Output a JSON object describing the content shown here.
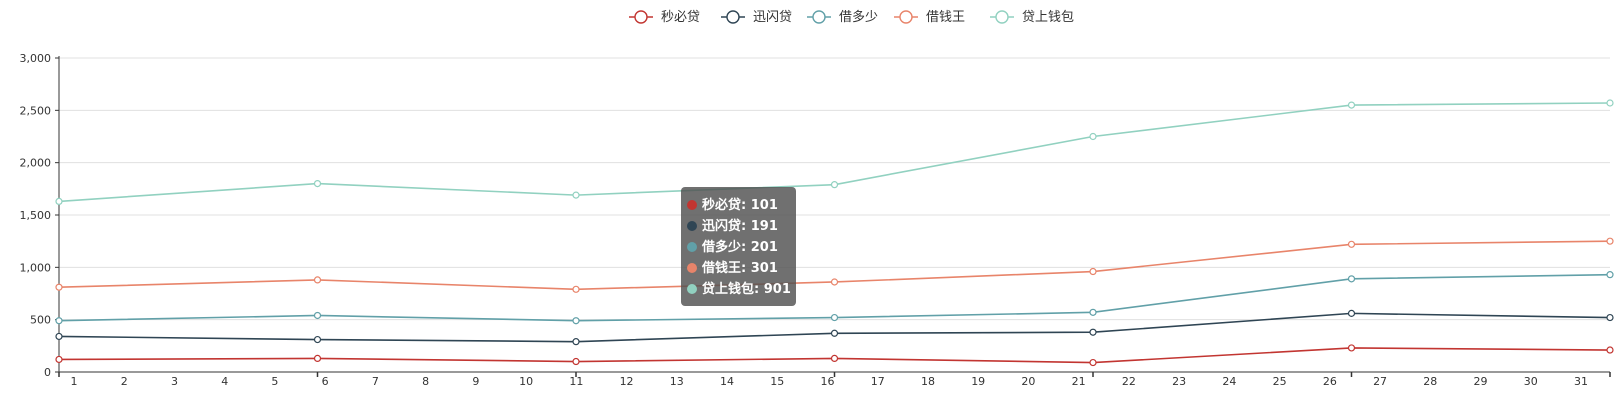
{
  "chart_data": {
    "type": "line",
    "legend_position": "top-center",
    "grid": true,
    "ylim": [
      0,
      3000
    ],
    "yticks": [
      "0",
      "500",
      "1,000",
      "1,500",
      "2,000",
      "2,500",
      "3,000"
    ],
    "xticks": [
      "1",
      "2",
      "3",
      "4",
      "5",
      "6",
      "7",
      "8",
      "9",
      "10",
      "11",
      "12",
      "13",
      "14",
      "15",
      "16",
      "17",
      "18",
      "19",
      "20",
      "21",
      "22",
      "23",
      "24",
      "25",
      "26",
      "27",
      "28",
      "29",
      "30",
      "31"
    ],
    "series": [
      {
        "name": "秒必贷",
        "color": "#c23531",
        "x": [
          0,
          6,
          12,
          18,
          24,
          30,
          36
        ],
        "y": [
          120,
          130,
          100,
          130,
          90,
          230,
          210
        ]
      },
      {
        "name": "迅闪贷",
        "color": "#2f4554",
        "x": [
          0,
          6,
          12,
          18,
          24,
          30,
          36
        ],
        "y": [
          340,
          310,
          290,
          370,
          380,
          560,
          520
        ]
      },
      {
        "name": "借多少",
        "color": "#61a0a8",
        "x": [
          0,
          6,
          12,
          18,
          24,
          30,
          36
        ],
        "y": [
          490,
          540,
          490,
          520,
          570,
          890,
          930
        ]
      },
      {
        "name": "借钱王",
        "color": "#e8846a",
        "x": [
          0,
          6,
          12,
          18,
          24,
          30,
          36
        ],
        "y": [
          810,
          880,
          790,
          860,
          960,
          1220,
          1250
        ]
      },
      {
        "name": "贷上钱包",
        "color": "#91d1c0",
        "x": [
          0,
          6,
          12,
          18,
          24,
          30,
          36
        ],
        "y": [
          1630,
          1800,
          1690,
          1790,
          2250,
          2550,
          2570
        ]
      }
    ],
    "tooltip": [
      {
        "label": "秒必贷: 101",
        "color": "#c23531"
      },
      {
        "label": "迅闪贷: 191",
        "color": "#2f4554"
      },
      {
        "label": "借多少: 201",
        "color": "#61a0a8"
      },
      {
        "label": "借钱王: 301",
        "color": "#e8846a"
      },
      {
        "label": "贷上钱包: 901",
        "color": "#91d1c0"
      }
    ]
  }
}
